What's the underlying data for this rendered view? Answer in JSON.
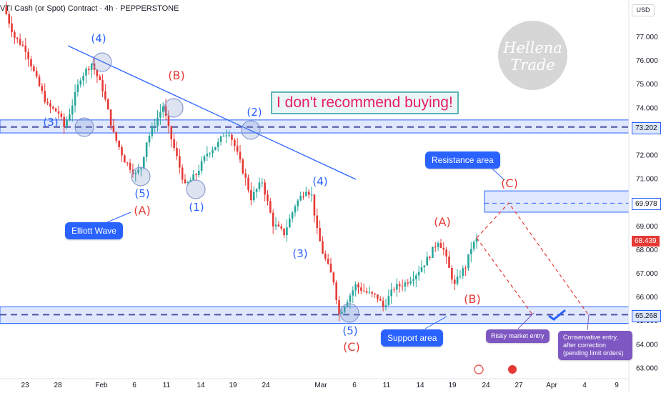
{
  "header": {
    "title": "VTI Cash (or Spot) Contract · 4h · PEPPERSTONE",
    "currency": "USD"
  },
  "watermark": {
    "line1": "Hellena",
    "line2": "Trade"
  },
  "warning": "I don't recommend buying!",
  "callouts": {
    "elliott": "Elliott Wave",
    "resistance": "Resistance area",
    "support": "Support area",
    "risky": "Risky market entry",
    "conservative": "Conservative entry, after correction (pending limit orders)"
  },
  "price_tags": {
    "resistance_top": "73.202",
    "resistance_zone": "69.978",
    "last": "68.439",
    "support": "65.268"
  },
  "x_ticks": [
    "23",
    "28",
    "Feb",
    "6",
    "11",
    "14",
    "19",
    "24",
    "Mar",
    "6",
    "11",
    "14",
    "19",
    "24",
    "27",
    "Apr",
    "4",
    "9"
  ],
  "colors": {
    "up": "#26a69a",
    "down": "#e53935",
    "wave_blue": "#2962ff",
    "wave_red": "#e53935",
    "zone": "#2962ff",
    "purple": "#7e57c2"
  },
  "chart_data": {
    "type": "candlestick",
    "title": "VTI Cash (or Spot) Contract · 4h · PEPPERSTONE",
    "ylim": [
      62.7,
      78.0
    ],
    "y_ticks": [
      63,
      64,
      65,
      66,
      67,
      68,
      69,
      70,
      71,
      72,
      73,
      74,
      75,
      76,
      77
    ],
    "y_tick_labels": [
      "63.000",
      "64.000",
      "65.000",
      "66.000",
      "67.000",
      "68.000",
      "69.000",
      "70.000",
      "71.000",
      "72.000",
      "73.000",
      "74.000",
      "75.000",
      "76.000",
      "77.000"
    ],
    "x_tick_labels": [
      "23",
      "28",
      "Feb",
      "6",
      "11",
      "14",
      "19",
      "24",
      "Mar",
      "6",
      "11",
      "14",
      "19",
      "24",
      "27",
      "Apr",
      "4",
      "9"
    ],
    "close_path": [
      [
        0,
        78.3
      ],
      [
        4,
        77.0
      ],
      [
        8,
        76.5
      ],
      [
        12,
        75.2
      ],
      [
        16,
        74.1
      ],
      [
        20,
        73.8
      ],
      [
        22,
        73.2
      ],
      [
        24,
        73.8
      ],
      [
        28,
        75.3
      ],
      [
        32,
        75.9
      ],
      [
        36,
        74.8
      ],
      [
        40,
        72.9
      ],
      [
        44,
        71.8
      ],
      [
        48,
        71.2
      ],
      [
        50,
        71.5
      ],
      [
        52,
        72.6
      ],
      [
        56,
        73.6
      ],
      [
        58,
        74.1
      ],
      [
        60,
        73.1
      ],
      [
        64,
        71.5
      ],
      [
        66,
        70.7
      ],
      [
        70,
        71.2
      ],
      [
        74,
        72.1
      ],
      [
        78,
        72.5
      ],
      [
        80,
        72.9
      ],
      [
        82,
        73.0
      ],
      [
        84,
        72.4
      ],
      [
        88,
        71.0
      ],
      [
        90,
        70.2
      ],
      [
        94,
        70.9
      ],
      [
        98,
        69.1
      ],
      [
        102,
        68.7
      ],
      [
        106,
        69.9
      ],
      [
        110,
        70.6
      ],
      [
        112,
        70.3
      ],
      [
        114,
        68.8
      ],
      [
        116,
        67.9
      ],
      [
        120,
        66.7
      ],
      [
        122,
        65.3
      ],
      [
        124,
        65.7
      ],
      [
        128,
        66.5
      ],
      [
        132,
        66.2
      ],
      [
        136,
        66.0
      ],
      [
        138,
        65.6
      ],
      [
        142,
        66.4
      ],
      [
        146,
        66.6
      ],
      [
        150,
        67.0
      ],
      [
        154,
        67.6
      ],
      [
        158,
        68.4
      ],
      [
        160,
        68.0
      ],
      [
        162,
        67.2
      ],
      [
        164,
        66.5
      ],
      [
        166,
        67.0
      ],
      [
        168,
        67.3
      ],
      [
        170,
        68.1
      ],
      [
        172,
        68.44
      ]
    ],
    "support_zone": [
      64.9,
      65.6
    ],
    "support_level": 65.268,
    "resistance_zone_1": [
      72.95,
      73.5
    ],
    "resistance_level_1": 73.202,
    "resistance_zone_2": [
      69.6,
      70.5
    ],
    "resistance_level_2": 69.978,
    "last_price": 68.439,
    "wave_labels_blue": [
      "(3)",
      "(4)",
      "(5)",
      "(1)",
      "(2)",
      "(3)",
      "(4)",
      "(5)"
    ],
    "wave_labels_red": [
      "(A)",
      "(B)",
      "(C)",
      "(A)",
      "(B)",
      "(C)"
    ],
    "legend": "none",
    "grid": false
  }
}
